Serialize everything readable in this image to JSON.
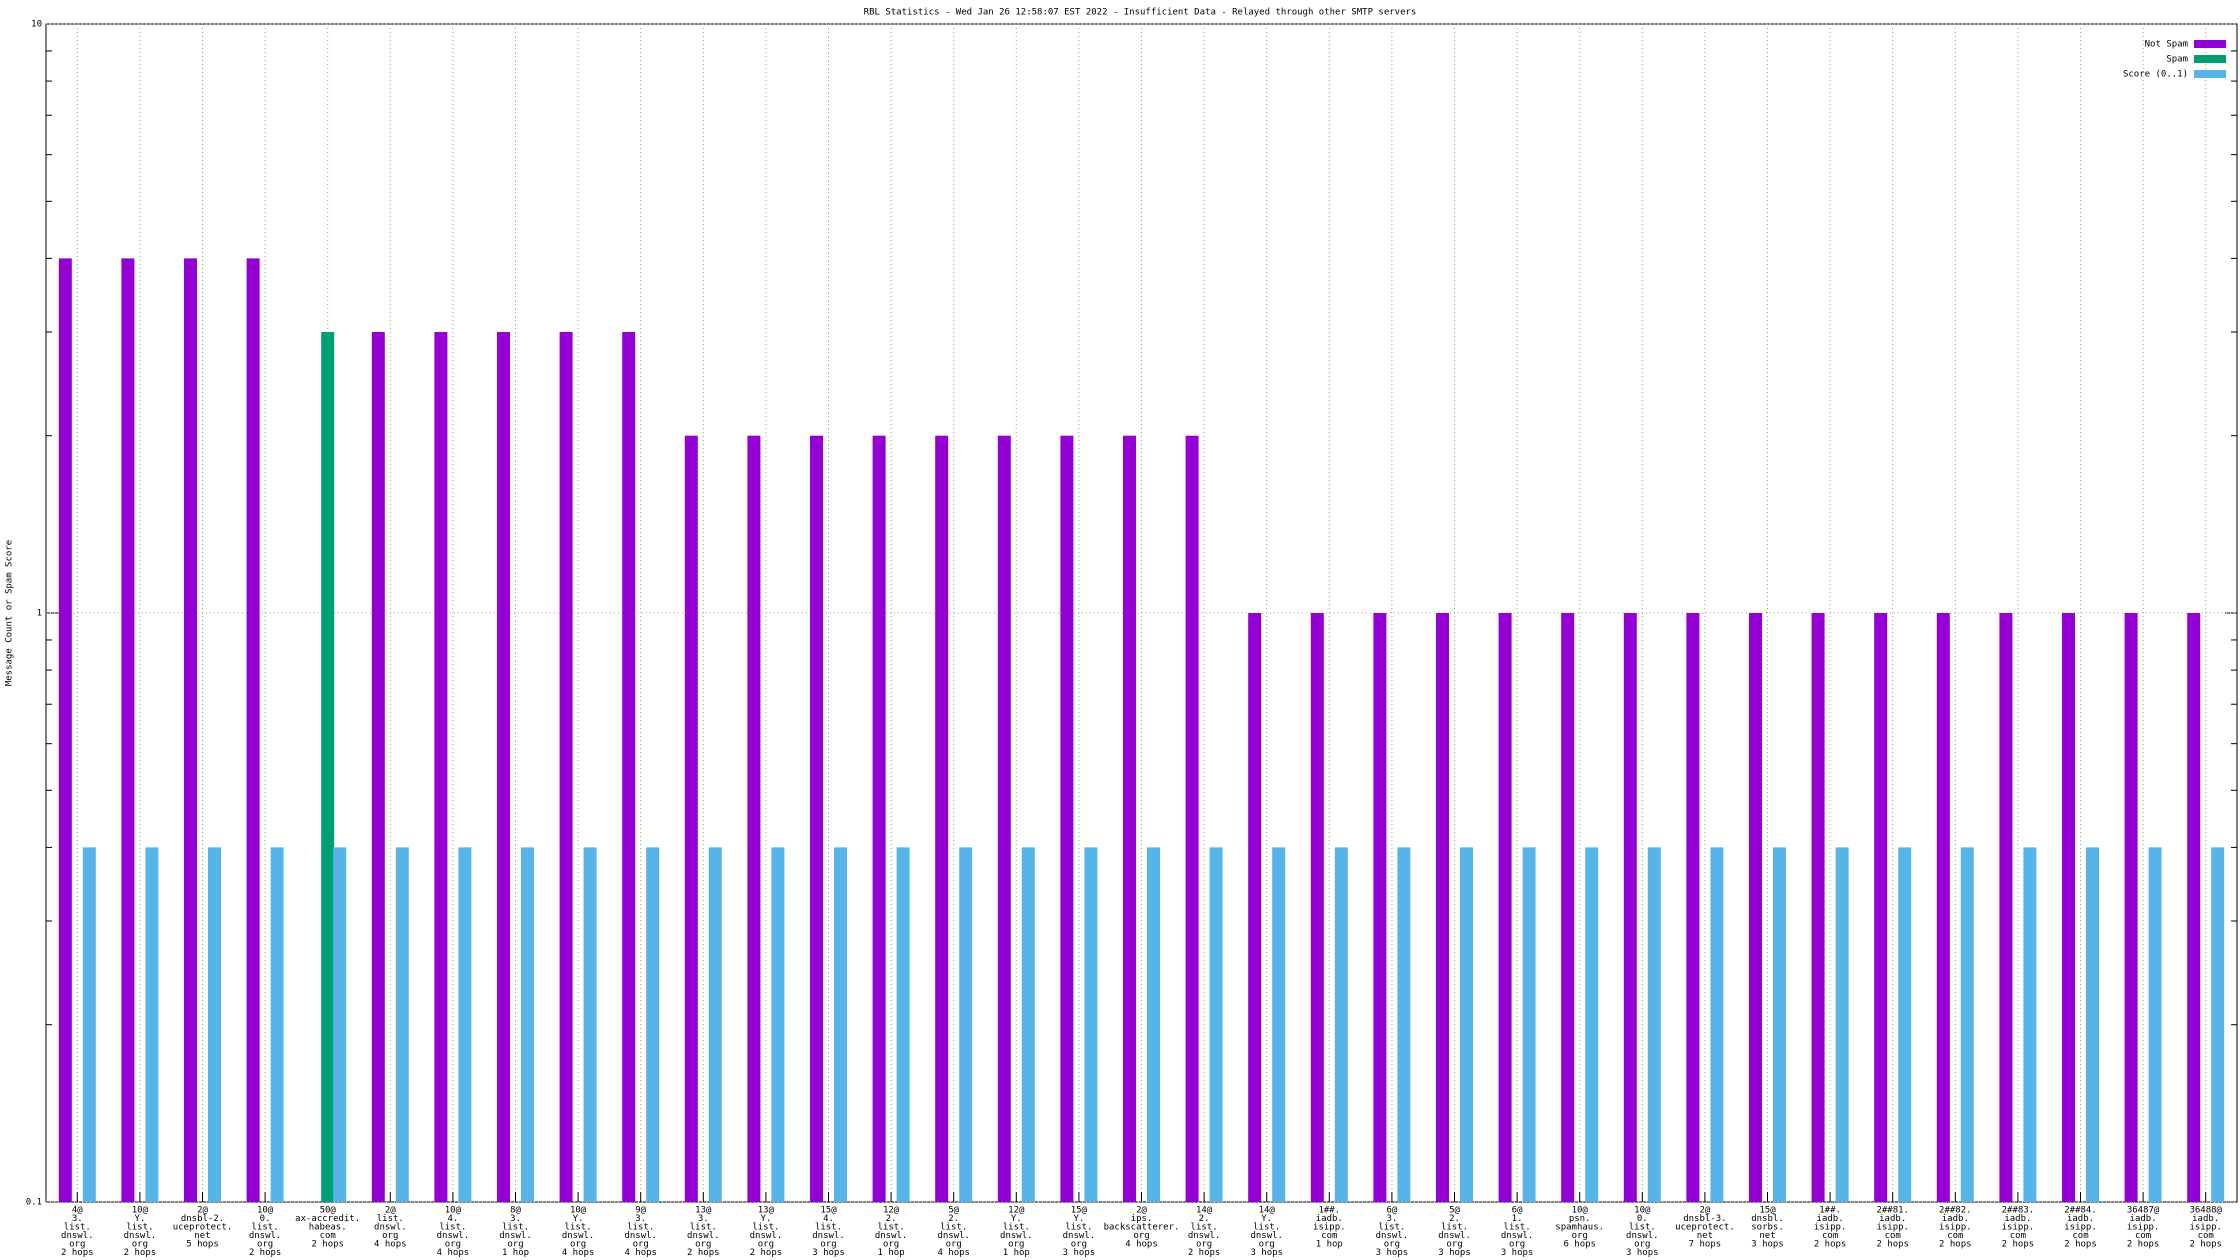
{
  "chart_data": {
    "type": "bar",
    "title": "RBL Statistics - Wed Jan 26 12:58:07 EST 2022 - Insufficient Data - Relayed through other SMTP servers",
    "y_label": "Message Count or Spam Score",
    "log_y": true,
    "grid": true,
    "legend": "top-right",
    "ylim": [
      0.1,
      10
    ],
    "yticks": [
      0.1,
      1,
      10
    ],
    "yminorticks": [
      0.2,
      0.3,
      0.4,
      0.5,
      0.6,
      0.7,
      0.8,
      0.9,
      2,
      3,
      4,
      5,
      6,
      7,
      8,
      9
    ],
    "categories": [
      [
        "4@",
        "3.",
        "list.",
        "dnswl.",
        "org",
        "2 hops"
      ],
      [
        "10@",
        "Y.",
        "list.",
        "dnswl.",
        "org",
        "2 hops"
      ],
      [
        "2@",
        "dnsbl-2.",
        "uceprotect.",
        "net",
        "5 hops"
      ],
      [
        "10@",
        "0.",
        "list.",
        "dnswl.",
        "org",
        "2 hops"
      ],
      [
        "50@",
        "ax-accredit.",
        "habeas.",
        "com",
        "2 hops"
      ],
      [
        "2@",
        "list.",
        "dnswl.",
        "org",
        "4 hops"
      ],
      [
        "10@",
        "4.",
        "list.",
        "dnswl.",
        "org",
        "4 hops"
      ],
      [
        "8@",
        "3.",
        "list.",
        "dnswl.",
        "org",
        "1 hop"
      ],
      [
        "10@",
        "Y.",
        "list.",
        "dnswl.",
        "org",
        "4 hops"
      ],
      [
        "9@",
        "3.",
        "list.",
        "dnswl.",
        "org",
        "4 hops"
      ],
      [
        "13@",
        "3.",
        "list.",
        "dnswl.",
        "org",
        "2 hops"
      ],
      [
        "13@",
        "Y.",
        "list.",
        "dnswl.",
        "org",
        "2 hops"
      ],
      [
        "15@",
        "4.",
        "list.",
        "dnswl.",
        "org",
        "3 hops"
      ],
      [
        "12@",
        "2.",
        "list.",
        "dnswl.",
        "org",
        "1 hop"
      ],
      [
        "5@",
        "2.",
        "list.",
        "dnswl.",
        "org",
        "4 hops"
      ],
      [
        "12@",
        "Y.",
        "list.",
        "dnswl.",
        "org",
        "1 hop"
      ],
      [
        "15@",
        "Y.",
        "list.",
        "dnswl.",
        "org",
        "3 hops"
      ],
      [
        "2@",
        "ips.",
        "backscatterer.",
        "org",
        "4 hops"
      ],
      [
        "14@",
        "2.",
        "list.",
        "dnswl.",
        "org",
        "2 hops"
      ],
      [
        "14@",
        "Y.",
        "list.",
        "dnswl.",
        "org",
        "3 hops"
      ],
      [
        "1##.",
        "iadb.",
        "isipp.",
        "com",
        "1 hop"
      ],
      [
        "6@",
        "3.",
        "list.",
        "dnswl.",
        "org",
        "3 hops"
      ],
      [
        "5@",
        "2.",
        "list.",
        "dnswl.",
        "org",
        "3 hops"
      ],
      [
        "6@",
        "1.",
        "list.",
        "dnswl.",
        "org",
        "3 hops"
      ],
      [
        "10@",
        "psn.",
        "spamhaus.",
        "org",
        "6 hops"
      ],
      [
        "10@",
        "0.",
        "list.",
        "dnswl.",
        "org",
        "3 hops"
      ],
      [
        "2@",
        "dnsbl-3.",
        "uceprotect.",
        "net",
        "7 hops"
      ],
      [
        "15@",
        "dnsbl.",
        "sorbs.",
        "net",
        "3 hops"
      ],
      [
        "1##.",
        "iadb.",
        "isipp.",
        "com",
        "2 hops"
      ],
      [
        "2##81.",
        "iadb.",
        "isipp.",
        "com",
        "2 hops"
      ],
      [
        "2##82.",
        "iadb.",
        "isipp.",
        "com",
        "2 hops"
      ],
      [
        "2##83.",
        "iadb.",
        "isipp.",
        "com",
        "2 hops"
      ],
      [
        "2##84.",
        "iadb.",
        "isipp.",
        "com",
        "2 hops"
      ],
      [
        "36487@",
        "iadb.",
        "isipp.",
        "com",
        "2 hops"
      ],
      [
        "36488@",
        "iadb.",
        "isipp.",
        "com",
        "2 hops"
      ]
    ],
    "series": [
      {
        "name": "Not Spam",
        "color": "#9400d3",
        "values": [
          4,
          4,
          4,
          4,
          null,
          3,
          3,
          3,
          3,
          3,
          2,
          2,
          2,
          2,
          2,
          2,
          2,
          2,
          2,
          1,
          1,
          1,
          1,
          1,
          1,
          1,
          1,
          1,
          1,
          1,
          1,
          1,
          1,
          1,
          1
        ]
      },
      {
        "name": "Spam",
        "color": "#009e73",
        "values": [
          null,
          null,
          null,
          null,
          3,
          null,
          null,
          null,
          null,
          null,
          null,
          null,
          null,
          null,
          null,
          null,
          null,
          null,
          null,
          null,
          null,
          null,
          null,
          null,
          null,
          null,
          null,
          null,
          null,
          null,
          null,
          null,
          null,
          null,
          null
        ]
      },
      {
        "name": "Score (0..1)",
        "color": "#56b4e9",
        "values": [
          0.4,
          0.4,
          0.4,
          0.4,
          0.4,
          0.4,
          0.4,
          0.4,
          0.4,
          0.4,
          0.4,
          0.4,
          0.4,
          0.4,
          0.4,
          0.4,
          0.4,
          0.4,
          0.4,
          0.4,
          0.4,
          0.4,
          0.4,
          0.4,
          0.4,
          0.4,
          0.4,
          0.4,
          0.4,
          0.4,
          0.4,
          0.4,
          0.4,
          0.4,
          0.4
        ]
      }
    ]
  }
}
